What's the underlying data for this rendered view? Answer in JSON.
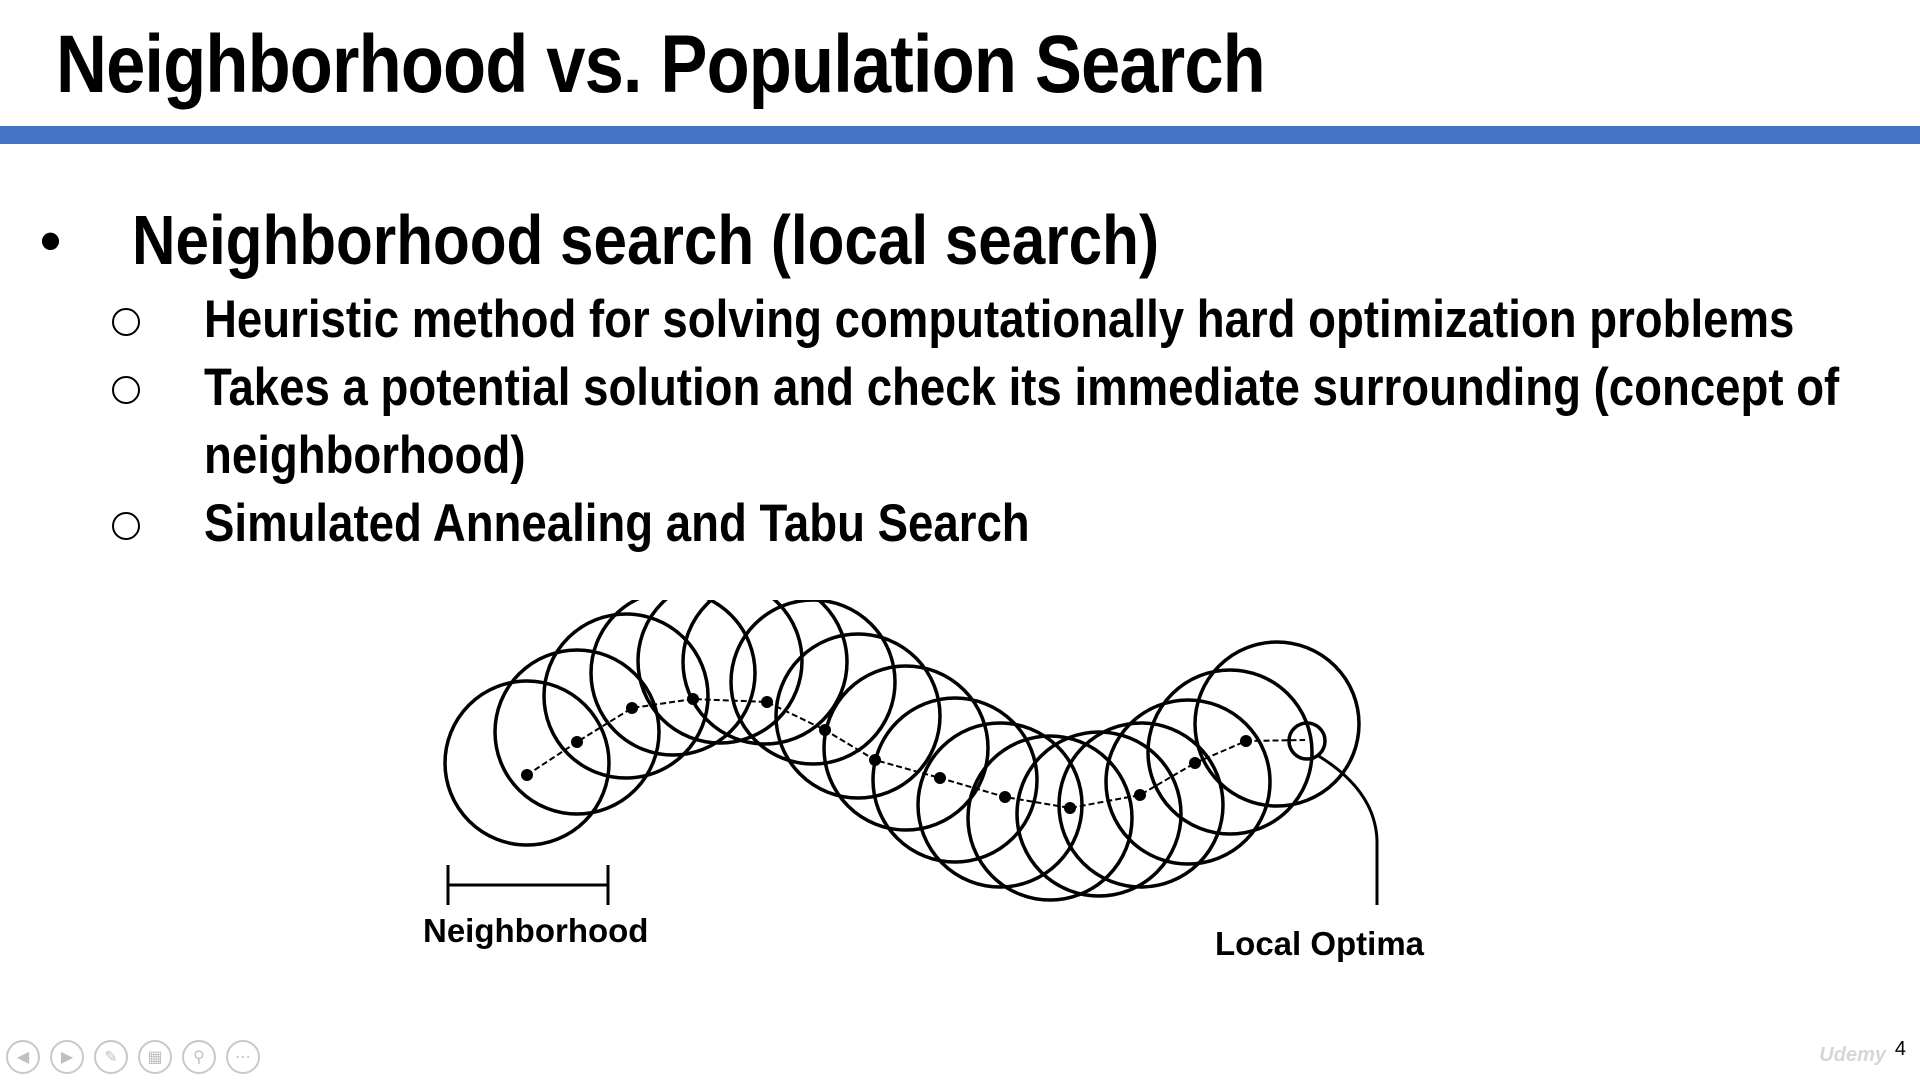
{
  "slide": {
    "title": "Neighborhood vs. Population Search",
    "bullet": "Neighborhood search (local search)",
    "sub_bullets": [
      "Heuristic method for solving computationally hard optimization problems",
      "Takes a potential solution and check its immediate surrounding (concept of",
      "neighborhood)",
      "Simulated Annealing and Tabu Search"
    ],
    "page_number": "4"
  },
  "diagram": {
    "label_left": "Neighborhood",
    "label_right": "Local Optima"
  },
  "toolbar": {
    "icons": [
      "previous-icon",
      "next-icon",
      "pen-icon",
      "slides-icon",
      "zoom-icon",
      "more-icon"
    ]
  },
  "watermark": "Udemy",
  "colors": {
    "accent_rule": "#4472c4"
  }
}
